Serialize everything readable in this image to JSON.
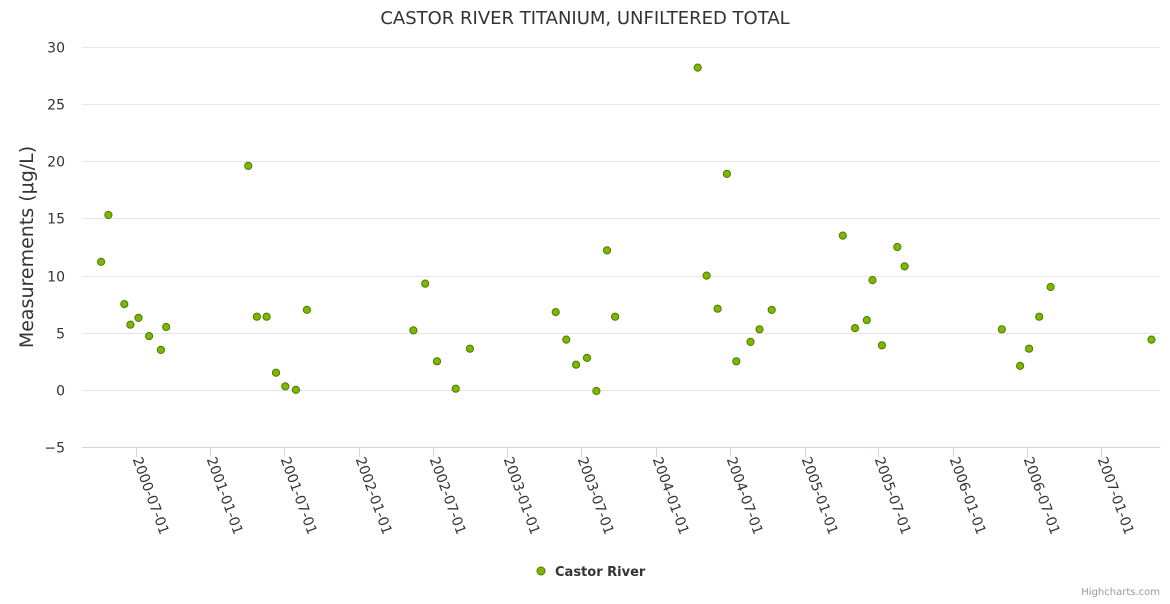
{
  "chart_data": {
    "type": "scatter",
    "title": "CASTOR RIVER TITANIUM, UNFILTERED TOTAL",
    "ylabel": "Measurements (μg/L)",
    "xlabel": "",
    "ylim": [
      -5,
      30
    ],
    "yticks": [
      -5,
      0,
      5,
      10,
      15,
      20,
      25,
      30
    ],
    "y_tick_labels": [
      "−5",
      "0",
      "5",
      "10",
      "15",
      "20",
      "25",
      "30"
    ],
    "xlim": [
      "2000-02-20",
      "2007-05-25"
    ],
    "xticks": [
      "2000-07-01",
      "2001-01-01",
      "2001-07-01",
      "2002-01-01",
      "2002-07-01",
      "2003-01-01",
      "2003-07-01",
      "2004-01-01",
      "2004-07-01",
      "2005-01-01",
      "2005-07-01",
      "2006-01-01",
      "2006-07-01",
      "2007-01-01"
    ],
    "grid": true,
    "legend_position": "bottom-center",
    "credits": "Highcharts.com",
    "series": [
      {
        "name": "Castor River",
        "color": "#7cb800",
        "points": [
          {
            "x": "2000-04-07",
            "y": 11.2
          },
          {
            "x": "2000-04-25",
            "y": 15.3
          },
          {
            "x": "2000-06-03",
            "y": 7.5
          },
          {
            "x": "2000-06-18",
            "y": 5.7
          },
          {
            "x": "2000-07-08",
            "y": 6.3
          },
          {
            "x": "2000-08-03",
            "y": 4.7
          },
          {
            "x": "2000-09-01",
            "y": 3.5
          },
          {
            "x": "2000-09-14",
            "y": 5.5
          },
          {
            "x": "2001-04-04",
            "y": 19.6
          },
          {
            "x": "2001-04-25",
            "y": 6.4
          },
          {
            "x": "2001-05-19",
            "y": 6.4
          },
          {
            "x": "2001-06-11",
            "y": 1.5
          },
          {
            "x": "2001-07-04",
            "y": 0.3
          },
          {
            "x": "2001-07-30",
            "y": 0.0
          },
          {
            "x": "2001-08-26",
            "y": 7.0
          },
          {
            "x": "2002-05-15",
            "y": 5.2
          },
          {
            "x": "2002-06-13",
            "y": 9.3
          },
          {
            "x": "2002-07-12",
            "y": 2.5
          },
          {
            "x": "2002-08-27",
            "y": 0.1
          },
          {
            "x": "2002-10-01",
            "y": 3.6
          },
          {
            "x": "2003-04-30",
            "y": 6.8
          },
          {
            "x": "2003-05-26",
            "y": 4.4
          },
          {
            "x": "2003-06-19",
            "y": 2.2
          },
          {
            "x": "2003-07-16",
            "y": 2.8
          },
          {
            "x": "2003-08-08",
            "y": -0.1
          },
          {
            "x": "2003-09-03",
            "y": 12.2
          },
          {
            "x": "2003-09-23",
            "y": 6.4
          },
          {
            "x": "2004-04-13",
            "y": 28.2
          },
          {
            "x": "2004-05-05",
            "y": 10.0
          },
          {
            "x": "2004-06-01",
            "y": 7.1
          },
          {
            "x": "2004-06-24",
            "y": 18.9
          },
          {
            "x": "2004-07-17",
            "y": 2.5
          },
          {
            "x": "2004-08-21",
            "y": 4.2
          },
          {
            "x": "2004-09-12",
            "y": 5.3
          },
          {
            "x": "2004-10-12",
            "y": 7.0
          },
          {
            "x": "2005-04-05",
            "y": 13.5
          },
          {
            "x": "2005-05-05",
            "y": 5.4
          },
          {
            "x": "2005-06-03",
            "y": 6.1
          },
          {
            "x": "2005-06-17",
            "y": 9.6
          },
          {
            "x": "2005-07-10",
            "y": 3.9
          },
          {
            "x": "2005-08-17",
            "y": 12.5
          },
          {
            "x": "2005-09-04",
            "y": 10.8
          },
          {
            "x": "2006-05-01",
            "y": 5.3
          },
          {
            "x": "2006-06-15",
            "y": 2.1
          },
          {
            "x": "2006-07-07",
            "y": 3.6
          },
          {
            "x": "2006-08-01",
            "y": 6.4
          },
          {
            "x": "2006-08-29",
            "y": 9.0
          },
          {
            "x": "2007-05-04",
            "y": 4.4
          }
        ]
      }
    ]
  }
}
